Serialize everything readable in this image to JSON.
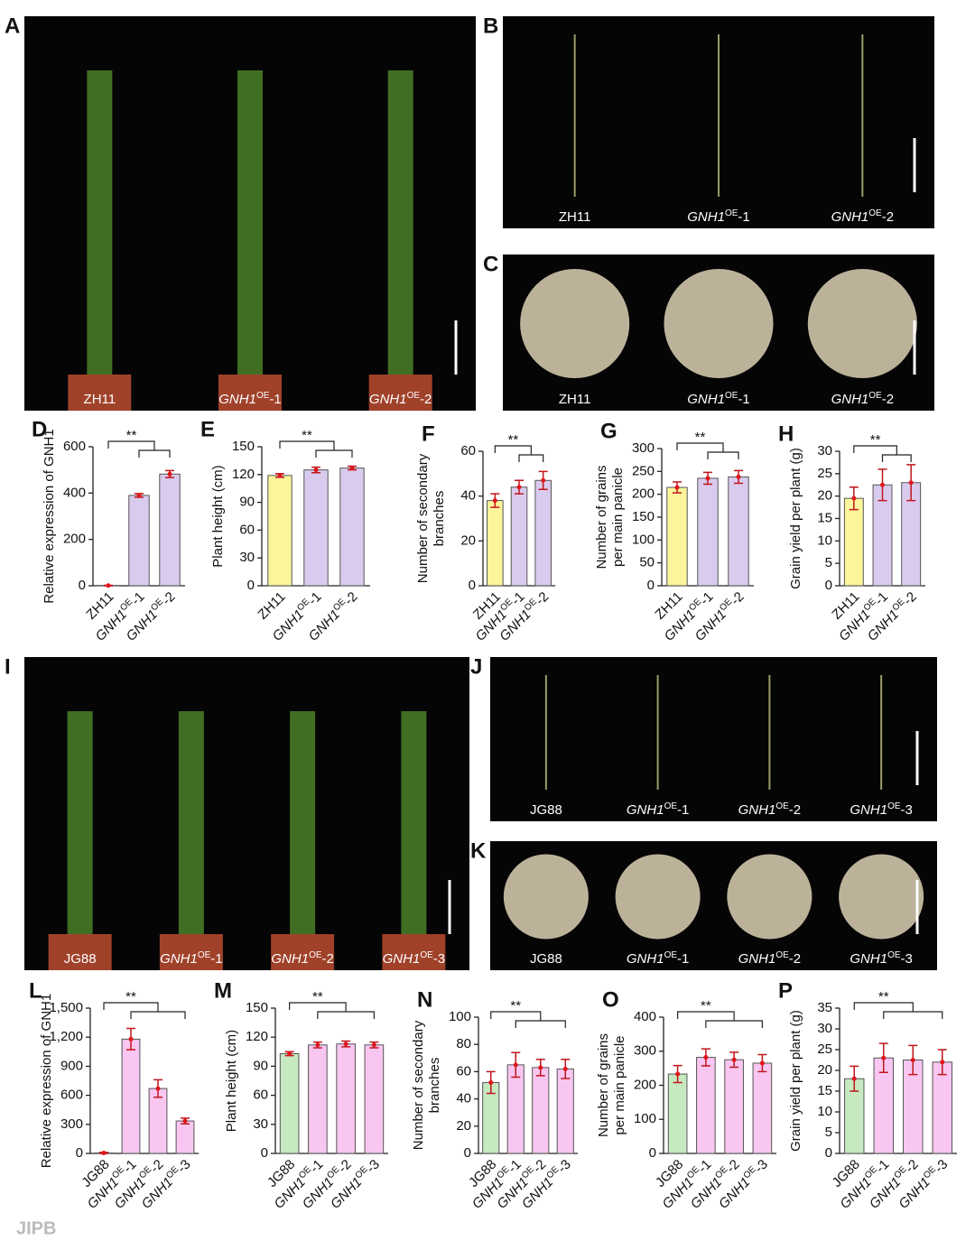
{
  "panels": [
    {
      "label": "A",
      "names": [
        "ZH11",
        "GNH1OE-1",
        "GNH1OE-2"
      ]
    },
    {
      "label": "B",
      "names": [
        "ZH11",
        "GNH1OE-1",
        "GNH1OE-2"
      ]
    },
    {
      "label": "C",
      "names": [
        "ZH11",
        "GNH1OE-1",
        "GNH1OE-2"
      ]
    },
    {
      "label": "I",
      "names": [
        "JG88",
        "GNH1OE-1",
        "GNH1OE-2",
        "GNH1OE-3"
      ]
    },
    {
      "label": "J",
      "names": [
        "JG88",
        "GNH1OE-1",
        "GNH1OE-2",
        "GNH1OE-3"
      ]
    },
    {
      "label": "K",
      "names": [
        "JG88",
        "GNH1OE-1",
        "GNH1OE-2",
        "GNH1OE-3"
      ]
    }
  ],
  "chart_data": [
    {
      "type": "bar",
      "label": "D",
      "ylabel": [
        "Relative expression of GNH1"
      ],
      "categories": [
        "ZH11",
        "GNH1OE-1",
        "GNH1OE-2"
      ],
      "values": [
        1,
        390,
        482
      ],
      "errors": [
        1,
        8,
        15
      ],
      "colors": [
        "#fbf59b",
        "#d9cbee",
        "#d9cbee"
      ],
      "ylim": [
        0,
        600
      ],
      "yticks": [
        0,
        200,
        400,
        600
      ],
      "significance": "**"
    },
    {
      "type": "bar",
      "label": "E",
      "ylabel": [
        "Plant height (cm)"
      ],
      "categories": [
        "ZH11",
        "GNH1OE-1",
        "GNH1OE-2"
      ],
      "values": [
        119,
        125,
        127
      ],
      "errors": [
        2,
        3,
        2
      ],
      "colors": [
        "#fbf59b",
        "#d9cbee",
        "#d9cbee"
      ],
      "ylim": [
        0,
        150
      ],
      "yticks": [
        0,
        30,
        60,
        90,
        120,
        150
      ],
      "significance": "**"
    },
    {
      "type": "bar",
      "label": "F",
      "ylabel": [
        "Number of secondary",
        "branches"
      ],
      "categories": [
        "ZH11",
        "GNH1OE-1",
        "GNH1OE-2"
      ],
      "values": [
        38,
        44,
        47
      ],
      "errors": [
        3,
        3,
        4
      ],
      "colors": [
        "#fbf59b",
        "#d9cbee",
        "#d9cbee"
      ],
      "ylim": [
        0,
        60
      ],
      "yticks": [
        0,
        20,
        40,
        60
      ],
      "significance": "**"
    },
    {
      "type": "bar",
      "label": "G",
      "ylabel": [
        "Number of grains",
        "per main panicle"
      ],
      "categories": [
        "ZH11",
        "GNH1OE-1",
        "GNH1OE-2"
      ],
      "values": [
        215,
        235,
        238
      ],
      "errors": [
        12,
        13,
        14
      ],
      "colors": [
        "#fbf59b",
        "#d9cbee",
        "#d9cbee"
      ],
      "ylim": [
        0,
        300
      ],
      "yticks": [
        0,
        50,
        100,
        150,
        200,
        250,
        300
      ],
      "significance": "**"
    },
    {
      "type": "bar",
      "label": "H",
      "ylabel": [
        "Grain yield per plant (g)"
      ],
      "categories": [
        "ZH11",
        "GNH1OE-1",
        "GNH1OE-2"
      ],
      "values": [
        19.5,
        22.5,
        23
      ],
      "errors": [
        2.5,
        3.5,
        4
      ],
      "colors": [
        "#fbf59b",
        "#d9cbee",
        "#d9cbee"
      ],
      "ylim": [
        0,
        30
      ],
      "yticks": [
        0,
        5,
        10,
        15,
        20,
        25,
        30
      ],
      "significance": "**"
    },
    {
      "type": "bar",
      "label": "L",
      "ylabel": [
        "Relative expression of GNH1"
      ],
      "categories": [
        "JG88",
        "GNH1OE-1",
        "GNH1OE-2",
        "GNH1OE-3"
      ],
      "values": [
        5,
        1180,
        670,
        335
      ],
      "errors": [
        5,
        110,
        90,
        30
      ],
      "colors": [
        "#c6e9c1",
        "#f8c6f1",
        "#f8c6f1",
        "#f8c6f1"
      ],
      "ylim": [
        0,
        1500
      ],
      "yticks": [
        0,
        300,
        600,
        900,
        {
          "value": 1200,
          "label": "1,200"
        },
        {
          "value": 1500,
          "label": "1,500"
        }
      ],
      "significance": "**"
    },
    {
      "type": "bar",
      "label": "M",
      "ylabel": [
        "Plant height (cm)"
      ],
      "categories": [
        "JG88",
        "GNH1OE-1",
        "GNH1OE-2",
        "GNH1OE-3"
      ],
      "values": [
        103,
        112,
        113,
        112
      ],
      "errors": [
        2,
        3,
        3,
        3
      ],
      "colors": [
        "#c6e9c1",
        "#f8c6f1",
        "#f8c6f1",
        "#f8c6f1"
      ],
      "ylim": [
        0,
        150
      ],
      "yticks": [
        0,
        30,
        60,
        90,
        120,
        150
      ],
      "significance": "**"
    },
    {
      "type": "bar",
      "label": "N",
      "ylabel": [
        "Number of secondary",
        "branches"
      ],
      "categories": [
        "JG88",
        "GNH1OE-1",
        "GNH1OE-2",
        "GNH1OE-3"
      ],
      "values": [
        52,
        65,
        63,
        62
      ],
      "errors": [
        8,
        9,
        6,
        7
      ],
      "colors": [
        "#c6e9c1",
        "#f8c6f1",
        "#f8c6f1",
        "#f8c6f1"
      ],
      "ylim": [
        0,
        100
      ],
      "yticks": [
        0,
        20,
        40,
        60,
        80,
        100
      ],
      "significance": "**"
    },
    {
      "type": "bar",
      "label": "O",
      "ylabel": [
        "Number of grains",
        "per main panicle"
      ],
      "categories": [
        "JG88",
        "GNH1OE-1",
        "GNH1OE-2",
        "GNH1OE-3"
      ],
      "values": [
        233,
        282,
        275,
        265
      ],
      "errors": [
        25,
        25,
        22,
        25
      ],
      "colors": [
        "#c6e9c1",
        "#f8c6f1",
        "#f8c6f1",
        "#f8c6f1"
      ],
      "ylim": [
        0,
        400
      ],
      "yticks": [
        0,
        100,
        200,
        300,
        400
      ],
      "significance": "**"
    },
    {
      "type": "bar",
      "label": "P",
      "ylabel": [
        "Grain yield per plant (g)"
      ],
      "categories": [
        "JG88",
        "GNH1OE-1",
        "GNH1OE-2",
        "GNH1OE-3"
      ],
      "values": [
        18,
        23,
        22.5,
        22
      ],
      "errors": [
        3,
        3.5,
        3.5,
        3
      ],
      "colors": [
        "#c6e9c1",
        "#f8c6f1",
        "#f8c6f1",
        "#f8c6f1"
      ],
      "ylim": [
        0,
        35
      ],
      "yticks": [
        0,
        5,
        10,
        15,
        20,
        25,
        30,
        35
      ],
      "significance": "**"
    }
  ],
  "footer": {
    "logo": "JIPB"
  }
}
